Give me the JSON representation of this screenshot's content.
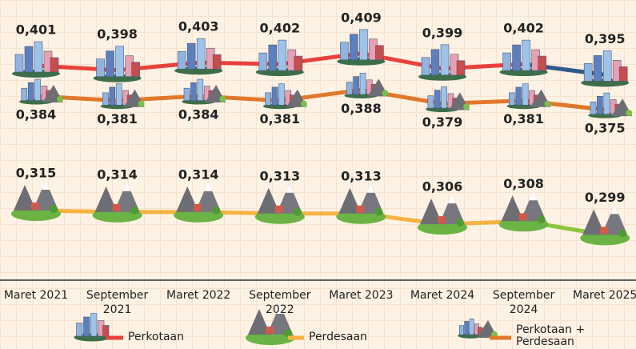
{
  "chart_data": {
    "type": "line",
    "categories": [
      "Maret 2021",
      "September 2021",
      "Maret 2022",
      "September 2022",
      "Maret 2023",
      "Maret 2024",
      "September 2024",
      "Maret 2025"
    ],
    "series": [
      {
        "name": "Perkotaan",
        "color": "#e8413c",
        "last_color": "#2e5b8a",
        "values": [
          0.401,
          0.398,
          0.403,
          0.402,
          0.409,
          0.399,
          0.402,
          0.395
        ],
        "value_labels": [
          "0,401",
          "0,398",
          "0,403",
          "0,402",
          "0,409",
          "0,399",
          "0,402",
          "0,395"
        ]
      },
      {
        "name": "Perdesaan",
        "color": "#f5b342",
        "last_color": "#8cc63f",
        "values": [
          0.315,
          0.314,
          0.314,
          0.313,
          0.313,
          0.306,
          0.308,
          0.299
        ],
        "value_labels": [
          "0,315",
          "0,314",
          "0,314",
          "0,313",
          "0,313",
          "0,306",
          "0,308",
          "0,299"
        ]
      },
      {
        "name": "Perkotaan + Perdesaan",
        "color": "#e0782a",
        "last_color": "#e0782a",
        "values": [
          0.384,
          0.381,
          0.384,
          0.381,
          0.388,
          0.379,
          0.381,
          0.375
        ],
        "value_labels": [
          "0,384",
          "0,381",
          "0,384",
          "0,381",
          "0,388",
          "0,379",
          "0,381",
          "0,375"
        ]
      }
    ]
  }
}
